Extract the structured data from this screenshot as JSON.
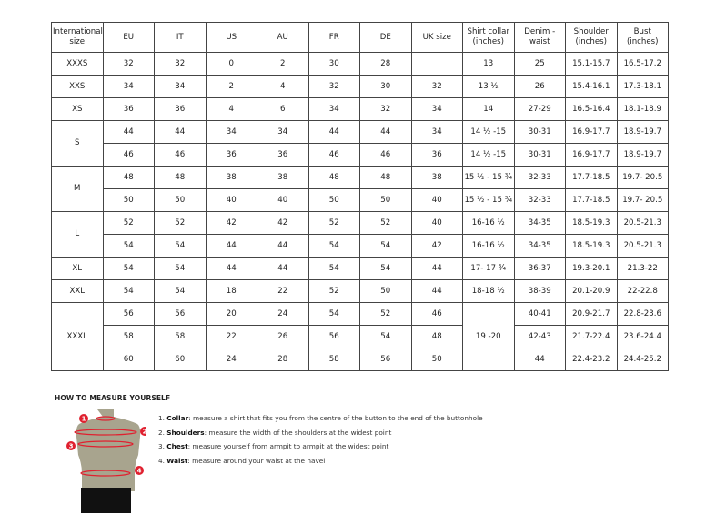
{
  "table": {
    "headers": [
      "International size",
      "EU",
      "IT",
      "US",
      "AU",
      "FR",
      "DE",
      "UK size",
      "Shirt collar (inches)",
      "Denim - waist",
      "Shoulder (inches)",
      "Bust (inches)"
    ],
    "groups": [
      {
        "size": "XXXS",
        "rows": [
          [
            "32",
            "32",
            "0",
            "2",
            "30",
            "28",
            "",
            "13",
            "25",
            "15.1-15.7",
            "16.5-17.2"
          ]
        ]
      },
      {
        "size": "XXS",
        "rows": [
          [
            "34",
            "34",
            "2",
            "4",
            "32",
            "30",
            "32",
            "13 ½",
            "26",
            "15.4-16.1",
            "17.3-18.1"
          ]
        ]
      },
      {
        "size": "XS",
        "rows": [
          [
            "36",
            "36",
            "4",
            "6",
            "34",
            "32",
            "34",
            "14",
            "27-29",
            "16.5-16.4",
            "18.1-18.9"
          ]
        ]
      },
      {
        "size": "S",
        "rows": [
          [
            "44",
            "44",
            "34",
            "34",
            "44",
            "44",
            "34",
            "14 ½ -15",
            "30-31",
            "16.9-17.7",
            "18.9-19.7"
          ],
          [
            "46",
            "46",
            "36",
            "36",
            "46",
            "46",
            "36",
            "14 ½ -15",
            "30-31",
            "16.9-17.7",
            "18.9-19.7"
          ]
        ]
      },
      {
        "size": "M",
        "rows": [
          [
            "48",
            "48",
            "38",
            "38",
            "48",
            "48",
            "38",
            "15 ½ - 15 ¾",
            "32-33",
            "17.7-18.5",
            "19.7- 20.5"
          ],
          [
            "50",
            "50",
            "40",
            "40",
            "50",
            "50",
            "40",
            "15 ½ - 15 ¾",
            "32-33",
            "17.7-18.5",
            "19.7- 20.5"
          ]
        ]
      },
      {
        "size": "L",
        "rows": [
          [
            "52",
            "52",
            "42",
            "42",
            "52",
            "52",
            "40",
            "16-16 ½",
            "34-35",
            "18.5-19.3",
            "20.5-21.3"
          ],
          [
            "54",
            "54",
            "44",
            "44",
            "54",
            "54",
            "42",
            "16-16 ½",
            "34-35",
            "18.5-19.3",
            "20.5-21.3"
          ]
        ]
      },
      {
        "size": "XL",
        "rows": [
          [
            "54",
            "54",
            "44",
            "44",
            "54",
            "54",
            "44",
            "17- 17 ¾",
            "36-37",
            "19.3-20.1",
            "21.3-22"
          ]
        ]
      },
      {
        "size": "XXL",
        "rows": [
          [
            "54",
            "54",
            "18",
            "22",
            "52",
            "50",
            "44",
            "18-18 ½",
            "38-39",
            "20.1-20.9",
            "22-22.8"
          ]
        ]
      },
      {
        "size": "XXXL",
        "merged_collar": "19 -20",
        "rows": [
          [
            "56",
            "56",
            "20",
            "24",
            "54",
            "52",
            "46",
            "",
            "40-41",
            "20.9-21.7",
            "22.8-23.6"
          ],
          [
            "58",
            "58",
            "22",
            "26",
            "56",
            "54",
            "48",
            "",
            "42-43",
            "21.7-22.4",
            "23.6-24.4"
          ],
          [
            "60",
            "60",
            "24",
            "28",
            "58",
            "56",
            "50",
            "",
            "44",
            "22.4-23.2",
            "24.4-25.2"
          ]
        ]
      }
    ]
  },
  "guide": {
    "title": "HOW TO MEASURE YOURSELF",
    "steps": [
      {
        "num": "1.",
        "term": "Collar",
        "text": ": measure a shirt that fits you from the centre of the button to the end of the buttonhole"
      },
      {
        "num": "2.",
        "term": "Shoulders",
        "text": ": measure the width of the shoulders at the widest point"
      },
      {
        "num": "3.",
        "term": "Chest",
        "text": ": measure yourself from armpit to armpit at the widest point"
      },
      {
        "num": "4.",
        "term": "Waist",
        "text": ": measure around your waist at the navel"
      }
    ],
    "markers": [
      "1",
      "2",
      "3",
      "4"
    ],
    "colors": {
      "marker": "#e0202f",
      "body": "#a8a48e",
      "shorts": "#111111"
    }
  }
}
